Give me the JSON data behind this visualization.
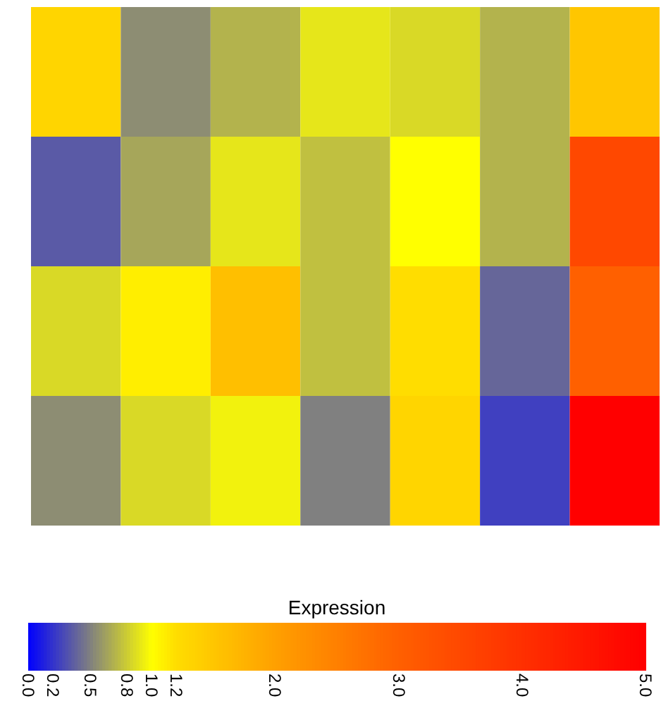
{
  "chart_data": {
    "type": "heatmap",
    "clabel": "Expression",
    "categories": [
      null,
      null,
      null,
      null,
      null,
      null,
      null
    ],
    "y_categories": [
      null,
      null,
      null,
      null
    ],
    "cells": [
      [
        1.3,
        0.55,
        0.7,
        0.9,
        0.85,
        0.7,
        1.5
      ],
      [
        0.35,
        0.65,
        0.9,
        0.75,
        1.0,
        0.7,
        3.5
      ],
      [
        0.85,
        1.1,
        1.6,
        0.75,
        1.2,
        0.4,
        3.0
      ],
      [
        0.55,
        0.85,
        0.95,
        0.5,
        1.3,
        0.25,
        5.0
      ]
    ],
    "clim": [
      0.0,
      5.0
    ],
    "cticks": [
      {
        "value": 0,
        "label": "0.0"
      },
      {
        "value": 0.2,
        "label": "0.2"
      },
      {
        "value": 0.5,
        "label": "0.5"
      },
      {
        "value": 0.8,
        "label": "0.8"
      },
      {
        "value": 1,
        "label": "1.0"
      },
      {
        "value": 1.2,
        "label": "1.2"
      },
      {
        "value": 2,
        "label": "2.0"
      },
      {
        "value": 3,
        "label": "3.0"
      },
      {
        "value": 4,
        "label": "4.0"
      },
      {
        "value": 5,
        "label": "5.0"
      }
    ]
  }
}
